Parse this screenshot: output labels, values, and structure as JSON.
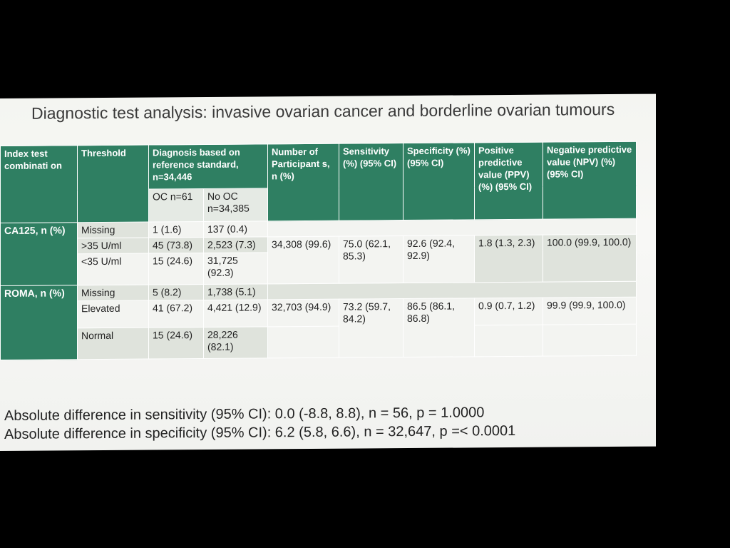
{
  "slide": {
    "title": "Diagnostic test analysis: invasive ovarian cancer and borderline ovarian tumours"
  },
  "table": {
    "headers": {
      "index_test": "Index test combinati on",
      "threshold": "Threshold",
      "diagnosis": "Diagnosis based on reference standard, n=34,446",
      "oc": "OC n=61",
      "no_oc": "No OC n=34,385",
      "participants": "Number of Participant s, n (%)",
      "sensitivity": "Sensitivity (%) (95% CI)",
      "specificity": "Specificity (%) (95% CI)",
      "ppv": "Positive predictive value (PPV) (%) (95% CI)",
      "npv": "Negative predictive value (NPV) (%) (95% CI)"
    },
    "groups": [
      {
        "label": "CA125, n (%)",
        "participants": "34,308 (99.6)",
        "sensitivity": "75.0 (62.1, 85.3)",
        "specificity": "92.6 (92.4, 92.9)",
        "ppv": "1.8 (1.3, 2.3)",
        "npv": "100.0 (99.9, 100.0)",
        "rows": [
          {
            "threshold": "Missing",
            "oc": "1 (1.6)",
            "no_oc": "137 (0.4)"
          },
          {
            "threshold": ">35 U/ml",
            "oc": "45 (73.8)",
            "no_oc": "2,523 (7.3)"
          },
          {
            "threshold": "<35 U/ml",
            "oc": "15 (24.6)",
            "no_oc": "31,725 (92.3)"
          }
        ]
      },
      {
        "label": "ROMA, n (%)",
        "participants": "32,703 (94.9)",
        "sensitivity": "73.2 (59.7, 84.2)",
        "specificity": "86.5 (86.1, 86.8)",
        "ppv": "0.9 (0.7, 1.2)",
        "npv": "99.9 (99.9, 100.0)",
        "rows": [
          {
            "threshold": "Missing",
            "oc": "5 (8.2)",
            "no_oc": "1,738 (5.1)"
          },
          {
            "threshold": "Elevated",
            "oc": "41 (67.2)",
            "no_oc": "4,421 (12.9)"
          },
          {
            "threshold": "Normal",
            "oc": "15 (24.6)",
            "no_oc": "28,226 (82.1)"
          }
        ]
      }
    ]
  },
  "notes": {
    "sensitivity_diff": "Absolute difference in sensitivity (95% CI): 0.0 (-8.8, 8.8), n = 56, p = 1.0000",
    "specificity_diff": "Absolute difference in specificity (95% CI): 6.2 (5.8, 6.6), n = 32,647, p =< 0.0001"
  }
}
